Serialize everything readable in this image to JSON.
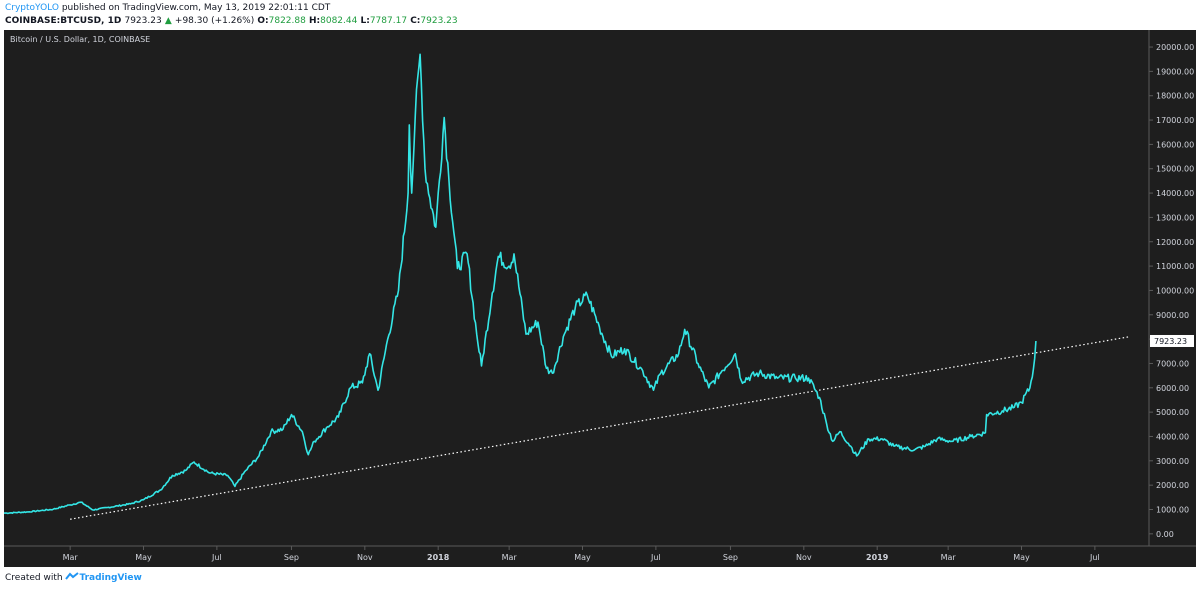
{
  "header": {
    "author": "CryptoYOLO",
    "published": "published on TradingView.com, May 13, 2019 22:01:11 CDT",
    "symbol": "COINBASE:BTCUSD, 1D",
    "last": "7923.23",
    "change_arrow": "▲",
    "change": "+98.30 (+1.26%)",
    "o_label": "O:",
    "o": "7822.88",
    "h_label": "H:",
    "h": "8082.44",
    "l_label": "L:",
    "l": "7787.17",
    "c_label": "C:",
    "c": "7923.23"
  },
  "footer": {
    "created_with": "Created with",
    "brand": "TradingView",
    "logo_icon": "tradingview-logo-icon"
  },
  "colors": {
    "background": "#1e1e1e",
    "line": "#34e6e6",
    "trendline": "#ffffff",
    "axis_text": "#d1d4dc",
    "up": "#1f9d3f"
  },
  "chart_data": {
    "type": "line",
    "title": "Bitcoin / U.S. Dollar, 1D, COINBASE",
    "price_label": "7923.23",
    "ylim": [
      -500,
      20700
    ],
    "y_ticks": [
      "0.00",
      "1000.00",
      "2000.00",
      "3000.00",
      "4000.00",
      "5000.00",
      "6000.00",
      "7000.00",
      "8000.00",
      "9000.00",
      "10000.00",
      "11000.00",
      "12000.00",
      "13000.00",
      "14000.00",
      "15000.00",
      "16000.00",
      "17000.00",
      "18000.00",
      "19000.00",
      "20000.00"
    ],
    "x_ticks": [
      {
        "label": "Mar",
        "date": "2017-03-01",
        "bold": false
      },
      {
        "label": "May",
        "date": "2017-05-01",
        "bold": false
      },
      {
        "label": "Jul",
        "date": "2017-07-01",
        "bold": false
      },
      {
        "label": "Sep",
        "date": "2017-09-01",
        "bold": false
      },
      {
        "label": "Nov",
        "date": "2017-11-01",
        "bold": false
      },
      {
        "label": "2018",
        "date": "2018-01-01",
        "bold": true
      },
      {
        "label": "Mar",
        "date": "2018-03-01",
        "bold": false
      },
      {
        "label": "May",
        "date": "2018-05-01",
        "bold": false
      },
      {
        "label": "Jul",
        "date": "2018-07-01",
        "bold": false
      },
      {
        "label": "Sep",
        "date": "2018-09-01",
        "bold": false
      },
      {
        "label": "Nov",
        "date": "2018-11-01",
        "bold": false
      },
      {
        "label": "2019",
        "date": "2019-01-01",
        "bold": true
      },
      {
        "label": "Mar",
        "date": "2019-03-01",
        "bold": false
      },
      {
        "label": "May",
        "date": "2019-05-01",
        "bold": false
      },
      {
        "label": "Jul",
        "date": "2019-07-01",
        "bold": false
      }
    ],
    "x_range": [
      "2017-01-05",
      "2019-08-15"
    ],
    "series": [
      {
        "points": [
          [
            "2017-01-05",
            850
          ],
          [
            "2017-01-25",
            900
          ],
          [
            "2017-02-15",
            1010
          ],
          [
            "2017-03-01",
            1190
          ],
          [
            "2017-03-10",
            1300
          ],
          [
            "2017-03-20",
            980
          ],
          [
            "2017-04-01",
            1080
          ],
          [
            "2017-04-20",
            1230
          ],
          [
            "2017-05-01",
            1400
          ],
          [
            "2017-05-15",
            1800
          ],
          [
            "2017-05-25",
            2400
          ],
          [
            "2017-06-05",
            2600
          ],
          [
            "2017-06-12",
            2950
          ],
          [
            "2017-06-25",
            2500
          ],
          [
            "2017-07-10",
            2400
          ],
          [
            "2017-07-16",
            1950
          ],
          [
            "2017-07-25",
            2600
          ],
          [
            "2017-08-05",
            3200
          ],
          [
            "2017-08-15",
            4200
          ],
          [
            "2017-08-25",
            4300
          ],
          [
            "2017-09-01",
            4900
          ],
          [
            "2017-09-10",
            4200
          ],
          [
            "2017-09-15",
            3250
          ],
          [
            "2017-09-20",
            3800
          ],
          [
            "2017-10-01",
            4400
          ],
          [
            "2017-10-10",
            4800
          ],
          [
            "2017-10-20",
            6000
          ],
          [
            "2017-10-30",
            6200
          ],
          [
            "2017-11-05",
            7400
          ],
          [
            "2017-11-12",
            5900
          ],
          [
            "2017-11-20",
            8000
          ],
          [
            "2017-11-29",
            10000
          ],
          [
            "2017-12-07",
            14000
          ],
          [
            "2017-12-08",
            16800
          ],
          [
            "2017-12-10",
            14000
          ],
          [
            "2017-12-13",
            17200
          ],
          [
            "2017-12-17",
            19700
          ],
          [
            "2017-12-21",
            15000
          ],
          [
            "2017-12-25",
            13800
          ],
          [
            "2017-12-30",
            12600
          ],
          [
            "2018-01-06",
            17100
          ],
          [
            "2018-01-10",
            14500
          ],
          [
            "2018-01-17",
            10900
          ],
          [
            "2018-01-25",
            11500
          ],
          [
            "2018-02-02",
            8200
          ],
          [
            "2018-02-06",
            6900
          ],
          [
            "2018-02-15",
            9900
          ],
          [
            "2018-02-20",
            11400
          ],
          [
            "2018-03-01",
            11000
          ],
          [
            "2018-03-05",
            11500
          ],
          [
            "2018-03-15",
            8200
          ],
          [
            "2018-03-25",
            8700
          ],
          [
            "2018-04-01",
            6800
          ],
          [
            "2018-04-06",
            6600
          ],
          [
            "2018-04-15",
            8100
          ],
          [
            "2018-04-25",
            9300
          ],
          [
            "2018-05-05",
            9800
          ],
          [
            "2018-05-15",
            8500
          ],
          [
            "2018-05-25",
            7300
          ],
          [
            "2018-06-05",
            7600
          ],
          [
            "2018-06-20",
            6700
          ],
          [
            "2018-06-29",
            5900
          ],
          [
            "2018-07-05",
            6600
          ],
          [
            "2018-07-20",
            7400
          ],
          [
            "2018-07-25",
            8400
          ],
          [
            "2018-08-05",
            7000
          ],
          [
            "2018-08-14",
            6000
          ],
          [
            "2018-08-25",
            6700
          ],
          [
            "2018-09-05",
            7400
          ],
          [
            "2018-09-10",
            6300
          ],
          [
            "2018-09-25",
            6600
          ],
          [
            "2018-10-10",
            6400
          ],
          [
            "2018-10-25",
            6400
          ],
          [
            "2018-11-05",
            6400
          ],
          [
            "2018-11-14",
            5600
          ],
          [
            "2018-11-20",
            4500
          ],
          [
            "2018-11-25",
            3800
          ],
          [
            "2018-12-01",
            4200
          ],
          [
            "2018-12-10",
            3600
          ],
          [
            "2018-12-15",
            3200
          ],
          [
            "2018-12-25",
            3900
          ],
          [
            "2019-01-05",
            3900
          ],
          [
            "2019-01-15",
            3600
          ],
          [
            "2019-02-01",
            3450
          ],
          [
            "2019-02-10",
            3600
          ],
          [
            "2019-02-20",
            3900
          ],
          [
            "2019-03-05",
            3800
          ],
          [
            "2019-03-20",
            4000
          ],
          [
            "2019-04-01",
            4150
          ],
          [
            "2019-04-02",
            4900
          ],
          [
            "2019-04-15",
            5050
          ],
          [
            "2019-04-25",
            5200
          ],
          [
            "2019-05-01",
            5400
          ],
          [
            "2019-05-08",
            6000
          ],
          [
            "2019-05-11",
            6800
          ],
          [
            "2019-05-13",
            7923
          ]
        ]
      }
    ],
    "trendline": {
      "from": [
        "2017-03-01",
        600
      ],
      "to": [
        "2019-07-30",
        8100
      ]
    }
  }
}
